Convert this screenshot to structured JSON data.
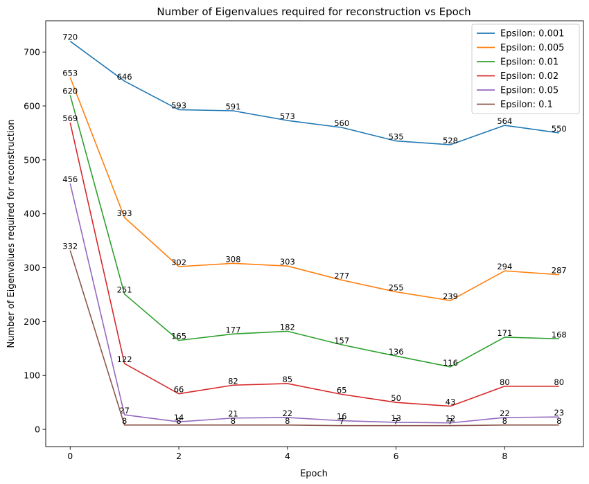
{
  "chart_data": {
    "type": "line",
    "title": "Number of Eigenvalues required for reconstruction vs Epoch",
    "xlabel": "Epoch",
    "ylabel": "Number of Eigenvalues required for reconstruction",
    "x": [
      0,
      1,
      2,
      3,
      4,
      5,
      6,
      7,
      8,
      9
    ],
    "xlim": [
      -0.45,
      9.45
    ],
    "ylim": [
      -32,
      758
    ],
    "xticks": [
      0,
      2,
      4,
      6,
      8
    ],
    "yticks": [
      0,
      100,
      200,
      300,
      400,
      500,
      600,
      700
    ],
    "grid": false,
    "legend_position": "top-right",
    "series": [
      {
        "name": "Epsilon: 0.001",
        "color": "#1f77b4",
        "values": [
          720,
          646,
          593,
          591,
          573,
          560,
          535,
          528,
          564,
          550
        ]
      },
      {
        "name": "Epsilon: 0.005",
        "color": "#ff7f0e",
        "values": [
          653,
          393,
          302,
          308,
          303,
          277,
          255,
          239,
          294,
          287
        ]
      },
      {
        "name": "Epsilon: 0.01",
        "color": "#2ca02c",
        "values": [
          620,
          251,
          165,
          177,
          182,
          157,
          136,
          116,
          171,
          168
        ]
      },
      {
        "name": "Epsilon: 0.02",
        "color": "#d62728",
        "values": [
          569,
          122,
          66,
          82,
          85,
          65,
          50,
          43,
          80,
          80
        ]
      },
      {
        "name": "Epsilon: 0.05",
        "color": "#9467bd",
        "values": [
          456,
          27,
          14,
          21,
          22,
          16,
          13,
          12,
          22,
          23
        ]
      },
      {
        "name": "Epsilon: 0.1",
        "color": "#8c564b",
        "values": [
          332,
          8,
          8,
          8,
          8,
          7,
          7,
          7,
          8,
          8
        ]
      }
    ]
  }
}
